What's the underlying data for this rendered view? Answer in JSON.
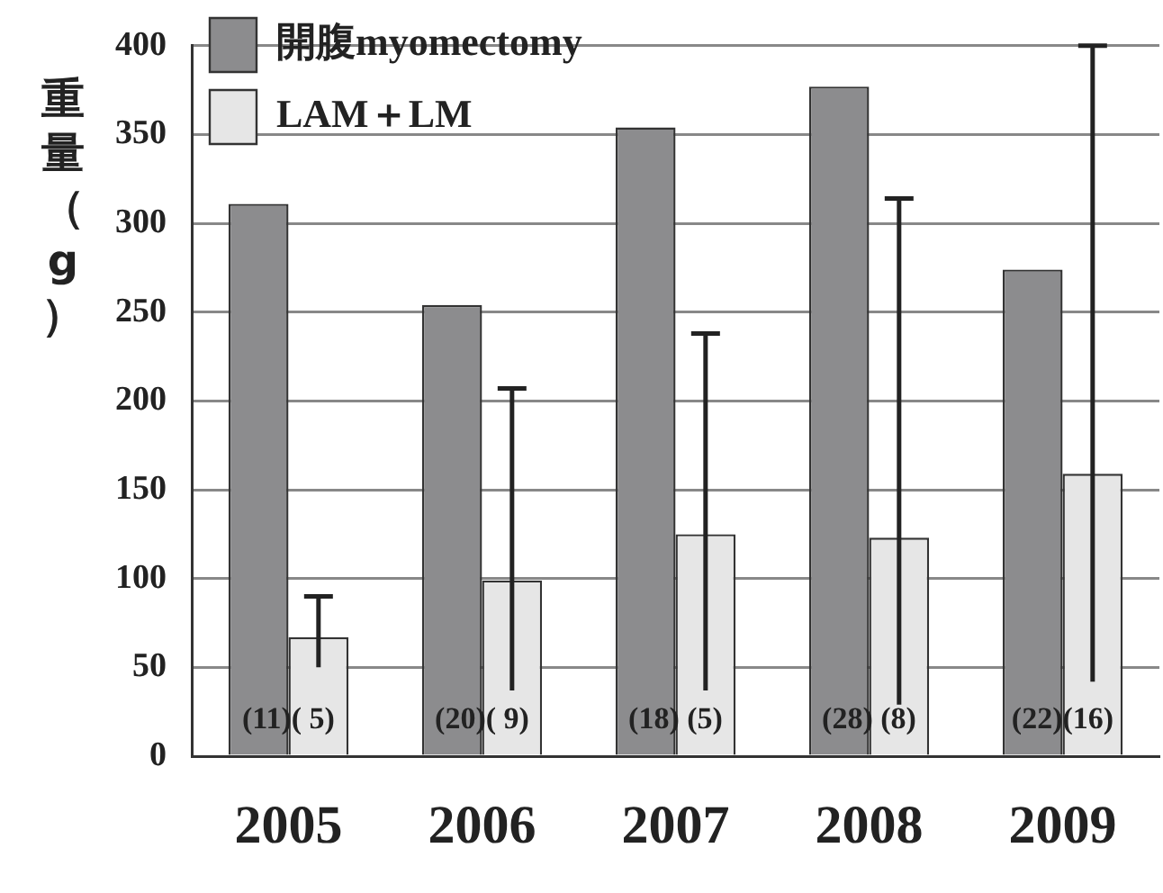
{
  "chart_data": {
    "type": "bar",
    "ylabel": "重量（g）",
    "categories": [
      "2005",
      "2006",
      "2007",
      "2008",
      "2009"
    ],
    "series": [
      {
        "name": "開腹myomectomy",
        "color": "#8c8c8e",
        "values": [
          311,
          254,
          354,
          377,
          274
        ]
      },
      {
        "name": "LAM＋LM",
        "color": "#e6e6e6",
        "values": [
          67,
          99,
          125,
          123,
          159
        ],
        "errors": [
          [
            50,
            90
          ],
          [
            37,
            207
          ],
          [
            37,
            238
          ],
          [
            29,
            314
          ],
          [
            42,
            400
          ]
        ]
      }
    ],
    "ylim": [
      0,
      400
    ],
    "yticks": [
      0,
      50,
      100,
      150,
      200,
      250,
      300,
      350,
      400
    ],
    "grid": "y",
    "legend": "top left",
    "annotations": [
      {
        "text": "(11)( 5)",
        "x": "2005",
        "y": 20
      },
      {
        "text": "(20)( 9)",
        "x": "2006",
        "y": 20
      },
      {
        "text": "(18) (5)",
        "x": "2007",
        "y": 20
      },
      {
        "text": "(28) (8)",
        "x": "2008",
        "y": 20
      },
      {
        "text": "(22)(16)",
        "x": "2009",
        "y": 20
      }
    ]
  }
}
